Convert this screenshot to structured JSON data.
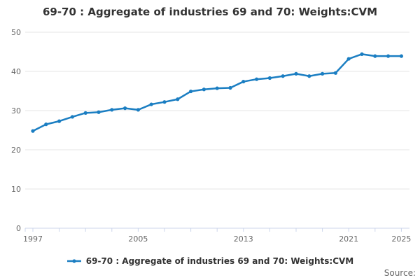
{
  "chart_data": {
    "type": "line",
    "title": "69-70 : Aggregate of industries 69 and 70: Weights:CVM",
    "x": [
      1997,
      1998,
      1999,
      2000,
      2001,
      2002,
      2003,
      2004,
      2005,
      2006,
      2007,
      2008,
      2009,
      2010,
      2011,
      2012,
      2013,
      2014,
      2015,
      2016,
      2017,
      2018,
      2019,
      2020,
      2021,
      2022,
      2023,
      2024,
      2025
    ],
    "series": [
      {
        "name": "69-70 : Aggregate of industries 69 and 70: Weights:CVM",
        "color": "#1b7ec2",
        "values": [
          24.8,
          26.5,
          27.3,
          28.4,
          29.4,
          29.6,
          30.2,
          30.6,
          30.2,
          31.6,
          32.2,
          32.9,
          34.9,
          35.4,
          35.7,
          35.8,
          37.4,
          38.0,
          38.3,
          38.8,
          39.4,
          38.8,
          39.4,
          39.6,
          43.2,
          44.4,
          43.9,
          43.9,
          43.9
        ]
      }
    ],
    "ylim": [
      0,
      50
    ],
    "ytick_step": 10,
    "yticks": [
      0,
      10,
      20,
      30,
      40,
      50
    ],
    "xtick_minor_step": 2,
    "xtick_labels": [
      1997,
      2005,
      2013,
      2021,
      2025
    ],
    "grid": "horizontal",
    "legend_position": "bottom",
    "colors": {
      "grid": "#e6e6e6",
      "axis": "#ccd6eb",
      "tick_label": "#666666",
      "title": "#333333",
      "legend_text": "#333333",
      "source_text": "#666666"
    },
    "source_label": "Source:"
  }
}
